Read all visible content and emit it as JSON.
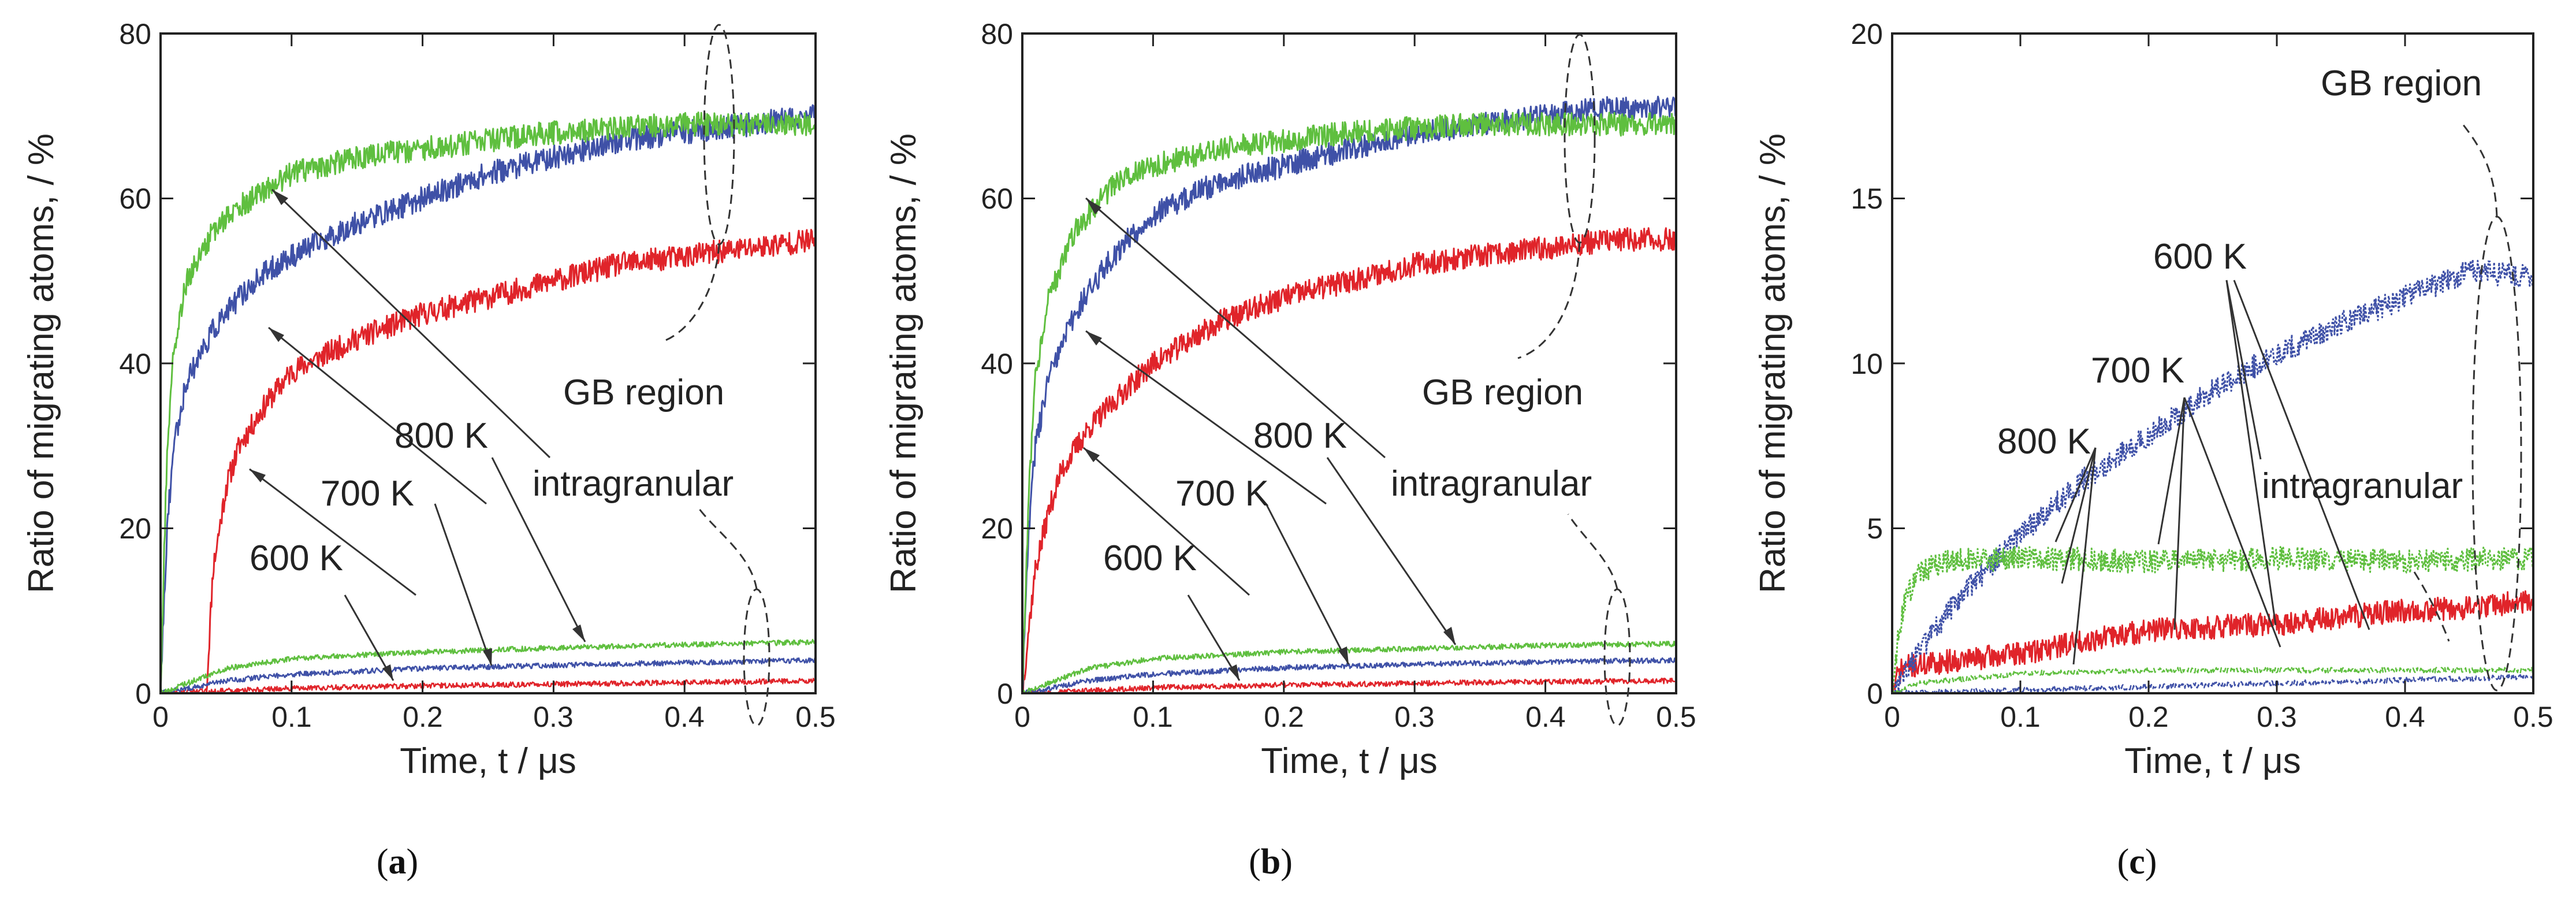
{
  "colors": {
    "s600": "#e0242a",
    "s700": "#3f51a7",
    "s800": "#5fbf3f",
    "axis": "#222222",
    "annot": "#333333"
  },
  "chart_data": [
    {
      "panel": "a",
      "caption_letter": "a",
      "type": "line",
      "xlabel": "Time, t / μs",
      "ylabel": "Ratio of migrating atoms, / %",
      "xlim": [
        0,
        0.5
      ],
      "ylim": [
        0,
        80
      ],
      "xticks": [
        "0",
        "0.1",
        "0.2",
        "0.3",
        "0.4",
        "0.5"
      ],
      "yticks": [
        "0",
        "20",
        "40",
        "60",
        "80"
      ],
      "annotations": {
        "gb_region": "GB region",
        "intragranular": "intragranular",
        "t800": "800 K",
        "t700": "700 K",
        "t600": "600 K"
      },
      "series": [
        {
          "name": "600 K GB region",
          "color": "#e0242a",
          "style": "solid",
          "x": [
            0,
            0.035,
            0.04,
            0.05,
            0.06,
            0.08,
            0.1,
            0.15,
            0.2,
            0.25,
            0.3,
            0.35,
            0.4,
            0.45,
            0.5
          ],
          "y": [
            0,
            0,
            15,
            25,
            30,
            35,
            39,
            43,
            46,
            48,
            50,
            52,
            53,
            54,
            55
          ]
        },
        {
          "name": "700 K GB region",
          "color": "#3f51a7",
          "style": "solid",
          "x": [
            0,
            0.005,
            0.01,
            0.02,
            0.04,
            0.06,
            0.08,
            0.1,
            0.15,
            0.2,
            0.25,
            0.3,
            0.35,
            0.4,
            0.45,
            0.5
          ],
          "y": [
            0,
            20,
            30,
            38,
            44,
            48,
            51,
            53,
            57,
            60,
            63,
            65,
            67,
            68,
            69,
            70
          ]
        },
        {
          "name": "800 K GB region",
          "color": "#5fbf3f",
          "style": "solid",
          "x": [
            0,
            0.005,
            0.01,
            0.02,
            0.04,
            0.06,
            0.08,
            0.1,
            0.15,
            0.2,
            0.25,
            0.3,
            0.35,
            0.4,
            0.45,
            0.5
          ],
          "y": [
            0,
            30,
            42,
            50,
            56,
            59,
            61,
            63,
            65,
            66,
            67,
            68,
            68.5,
            69,
            69,
            69
          ]
        },
        {
          "name": "600 K intragranular",
          "color": "#e0242a",
          "style": "solid",
          "x": [
            0,
            0.05,
            0.1,
            0.2,
            0.3,
            0.4,
            0.5
          ],
          "y": [
            0,
            0.3,
            0.6,
            0.9,
            1.1,
            1.3,
            1.5
          ]
        },
        {
          "name": "700 K intragranular",
          "color": "#3f51a7",
          "style": "solid",
          "x": [
            0,
            0.05,
            0.1,
            0.2,
            0.3,
            0.4,
            0.5
          ],
          "y": [
            0,
            1.5,
            2.3,
            3.0,
            3.4,
            3.7,
            4.0
          ]
        },
        {
          "name": "800 K intragranular",
          "color": "#5fbf3f",
          "style": "solid",
          "x": [
            0,
            0.05,
            0.1,
            0.2,
            0.3,
            0.4,
            0.5
          ],
          "y": [
            0,
            3.0,
            4.2,
            5.0,
            5.5,
            5.9,
            6.2
          ]
        }
      ]
    },
    {
      "panel": "b",
      "caption_letter": "b",
      "type": "line",
      "xlabel": "Time, t / μs",
      "ylabel": "Ratio of migrating atoms, / %",
      "xlim": [
        0,
        0.5
      ],
      "ylim": [
        0,
        80
      ],
      "xticks": [
        "0",
        "0.1",
        "0.2",
        "0.3",
        "0.4",
        "0.5"
      ],
      "yticks": [
        "0",
        "20",
        "40",
        "60",
        "80"
      ],
      "annotations": {
        "gb_region": "GB region",
        "intragranular": "intragranular",
        "t800": "800 K",
        "t700": "700 K",
        "t600": "600 K"
      },
      "series": [
        {
          "name": "600 K GB region",
          "color": "#e0242a",
          "style": "solid",
          "x": [
            0,
            0.005,
            0.01,
            0.02,
            0.03,
            0.05,
            0.08,
            0.1,
            0.15,
            0.2,
            0.25,
            0.3,
            0.35,
            0.4,
            0.45,
            0.5
          ],
          "y": [
            0,
            8,
            15,
            22,
            27,
            32,
            37,
            40,
            45,
            48,
            50,
            52,
            53,
            54,
            55,
            55
          ]
        },
        {
          "name": "700 K GB region",
          "color": "#3f51a7",
          "style": "solid",
          "x": [
            0,
            0.005,
            0.01,
            0.02,
            0.04,
            0.06,
            0.08,
            0.1,
            0.15,
            0.2,
            0.25,
            0.3,
            0.35,
            0.4,
            0.45,
            0.5
          ],
          "y": [
            0,
            20,
            30,
            38,
            46,
            51,
            55,
            58,
            62,
            64,
            66,
            68,
            69,
            70,
            71,
            71
          ]
        },
        {
          "name": "800 K GB region",
          "color": "#5fbf3f",
          "style": "solid",
          "x": [
            0,
            0.005,
            0.01,
            0.02,
            0.04,
            0.06,
            0.08,
            0.1,
            0.15,
            0.2,
            0.25,
            0.3,
            0.35,
            0.4,
            0.45,
            0.5
          ],
          "y": [
            0,
            25,
            38,
            48,
            56,
            60,
            63,
            64,
            66,
            67,
            68,
            68.5,
            69,
            69,
            69,
            69
          ]
        },
        {
          "name": "600 K intragranular",
          "color": "#e0242a",
          "style": "solid",
          "x": [
            0,
            0.05,
            0.1,
            0.2,
            0.3,
            0.4,
            0.5
          ],
          "y": [
            0,
            0.3,
            0.7,
            1.0,
            1.2,
            1.4,
            1.5
          ]
        },
        {
          "name": "700 K intragranular",
          "color": "#3f51a7",
          "style": "solid",
          "x": [
            0,
            0.05,
            0.1,
            0.2,
            0.3,
            0.4,
            0.5
          ],
          "y": [
            0,
            1.5,
            2.3,
            3.1,
            3.5,
            3.8,
            4.0
          ]
        },
        {
          "name": "800 K intragranular",
          "color": "#5fbf3f",
          "style": "solid",
          "x": [
            0,
            0.05,
            0.1,
            0.2,
            0.3,
            0.4,
            0.5
          ],
          "y": [
            0,
            3.0,
            4.2,
            5.0,
            5.4,
            5.8,
            6.0
          ]
        }
      ]
    },
    {
      "panel": "c",
      "caption_letter": "c",
      "type": "line",
      "xlabel": "Time, t / μs",
      "ylabel": "Ratio of migrating atoms, / %",
      "xlim": [
        0,
        0.5
      ],
      "ylim": [
        0,
        20
      ],
      "xticks": [
        "0",
        "0.1",
        "0.2",
        "0.3",
        "0.4",
        "0.5"
      ],
      "yticks": [
        "0",
        "5",
        "10",
        "15",
        "20"
      ],
      "annotations": {
        "gb_region": "GB region",
        "intragranular": "intragranular",
        "t800": "800 K",
        "t700": "700 K",
        "t600": "600 K"
      },
      "series": [
        {
          "name": "600 K GB region",
          "color": "#e0242a",
          "style": "solid",
          "x": [
            0,
            0.005,
            0.01,
            0.05,
            0.1,
            0.15,
            0.2,
            0.25,
            0.3,
            0.35,
            0.4,
            0.45,
            0.5
          ],
          "y": [
            0,
            0.6,
            0.8,
            1.0,
            1.2,
            1.6,
            1.9,
            2.0,
            2.1,
            2.3,
            2.5,
            2.6,
            2.8
          ]
        },
        {
          "name": "700 K GB region",
          "color": "#3f51a7",
          "style": "dotted",
          "x": [
            0,
            0.02,
            0.05,
            0.1,
            0.15,
            0.2,
            0.25,
            0.3,
            0.35,
            0.4,
            0.45,
            0.5
          ],
          "y": [
            0,
            1.2,
            2.8,
            4.8,
            6.5,
            7.8,
            9.2,
            10.3,
            11.2,
            12.0,
            12.8,
            12.6
          ]
        },
        {
          "name": "800 K GB region",
          "color": "#5fbf3f",
          "style": "dotted",
          "x": [
            0,
            0.005,
            0.01,
            0.02,
            0.04,
            0.1,
            0.2,
            0.3,
            0.4,
            0.5
          ],
          "y": [
            0,
            1.8,
            2.8,
            3.6,
            4.0,
            4.1,
            4.0,
            4.1,
            4.0,
            4.1
          ]
        },
        {
          "name": "600 K intragranular",
          "color": "#e0242a",
          "style": "solid",
          "x": [
            0,
            0.5
          ],
          "y": [
            0,
            0
          ]
        },
        {
          "name": "700 K intragranular",
          "color": "#3f51a7",
          "style": "dashed",
          "x": [
            0,
            0.1,
            0.2,
            0.3,
            0.4,
            0.5
          ],
          "y": [
            0,
            0.1,
            0.2,
            0.3,
            0.4,
            0.5
          ]
        },
        {
          "name": "800 K intragranular",
          "color": "#5fbf3f",
          "style": "dashed",
          "x": [
            0,
            0.02,
            0.1,
            0.2,
            0.3,
            0.4,
            0.5
          ],
          "y": [
            0,
            0.3,
            0.6,
            0.7,
            0.7,
            0.7,
            0.7
          ]
        }
      ]
    }
  ]
}
